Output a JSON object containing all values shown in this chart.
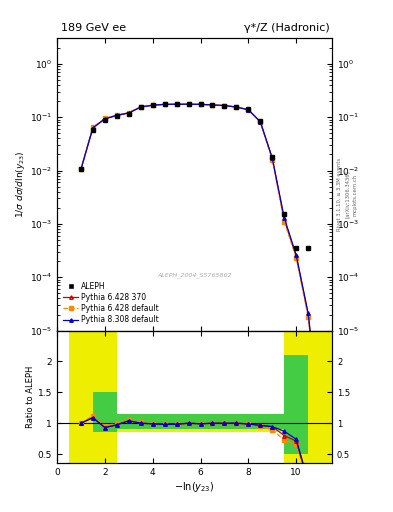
{
  "title_left": "189 GeV ee",
  "title_right": "γ*/Z (Hadronic)",
  "ylabel_main": "1/σ dσ/dln(y_{23})",
  "ylabel_ratio": "Ratio to ALEPH",
  "xlabel": "-ln(y_{23})",
  "rivet_label": "Rivet 3.1.10, ≥ 3.3M events",
  "arxiv_label": "[arXiv:1306.3436]",
  "mcplots_label": "mcplots.cern.ch",
  "dataset_label": "ALEPH_2004_S5765862",
  "x_data": [
    1.0,
    1.5,
    2.0,
    2.5,
    3.0,
    3.5,
    4.0,
    4.5,
    5.0,
    5.5,
    6.0,
    6.5,
    7.0,
    7.5,
    8.0,
    8.5,
    9.0,
    9.5,
    10.0,
    10.5,
    11.0
  ],
  "aleph_y": [
    0.0105,
    0.058,
    0.088,
    0.104,
    0.115,
    0.155,
    0.17,
    0.178,
    0.178,
    0.175,
    0.176,
    0.17,
    0.165,
    0.155,
    0.14,
    0.085,
    0.018,
    0.0015,
    0.00035,
    0.00035,
    null
  ],
  "pythia6_370_y": [
    0.0105,
    0.063,
    0.093,
    0.108,
    0.12,
    0.155,
    0.168,
    0.174,
    0.175,
    0.175,
    0.174,
    0.17,
    0.165,
    0.155,
    0.138,
    0.082,
    0.017,
    0.0012,
    0.00025,
    2e-05,
    2e-07
  ],
  "pythia6_default_y": [
    0.0105,
    0.065,
    0.095,
    0.11,
    0.122,
    0.157,
    0.168,
    0.174,
    0.175,
    0.175,
    0.174,
    0.17,
    0.165,
    0.155,
    0.137,
    0.081,
    0.016,
    0.0011,
    0.00023,
    1.8e-05,
    1.8e-07
  ],
  "pythia8_default_y": [
    0.0105,
    0.063,
    0.093,
    0.108,
    0.12,
    0.155,
    0.168,
    0.174,
    0.175,
    0.175,
    0.174,
    0.17,
    0.165,
    0.155,
    0.138,
    0.082,
    0.017,
    0.0013,
    0.00026,
    2.1e-05,
    2.1e-07
  ],
  "ratio_x": [
    1.0,
    1.5,
    2.0,
    2.5,
    3.0,
    3.5,
    4.0,
    4.5,
    5.0,
    5.5,
    6.0,
    6.5,
    7.0,
    7.5,
    8.0,
    8.5,
    9.0,
    9.5,
    10.0,
    10.5
  ],
  "ratio_p6370": [
    1.0,
    1.09,
    0.93,
    0.97,
    1.04,
    1.0,
    0.99,
    0.98,
    0.98,
    1.0,
    0.99,
    1.0,
    1.0,
    1.0,
    0.99,
    0.965,
    0.945,
    0.8,
    0.71,
    0.057
  ],
  "ratio_p6def": [
    1.0,
    1.12,
    0.96,
    1.0,
    1.06,
    1.015,
    0.99,
    0.98,
    0.985,
    1.0,
    0.99,
    1.0,
    1.0,
    1.0,
    0.98,
    0.953,
    0.89,
    0.73,
    0.66,
    0.051
  ],
  "ratio_p8def": [
    1.0,
    1.09,
    0.93,
    0.975,
    1.04,
    1.0,
    0.99,
    0.98,
    0.985,
    1.0,
    0.99,
    1.0,
    1.0,
    1.0,
    0.985,
    0.965,
    0.945,
    0.87,
    0.74,
    0.06
  ],
  "color_aleph": "#000000",
  "color_p6370": "#cc0000",
  "color_p6def": "#ff8800",
  "color_p8def": "#0000cc",
  "color_green": "#44cc44",
  "color_yellow": "#eeee00",
  "bg_color": "#ffffff",
  "xlim": [
    0,
    11.5
  ],
  "ylim_main_lo": 1e-05,
  "ylim_main_hi": 3.0,
  "ylim_ratio_lo": 0.35,
  "ylim_ratio_hi": 2.5
}
